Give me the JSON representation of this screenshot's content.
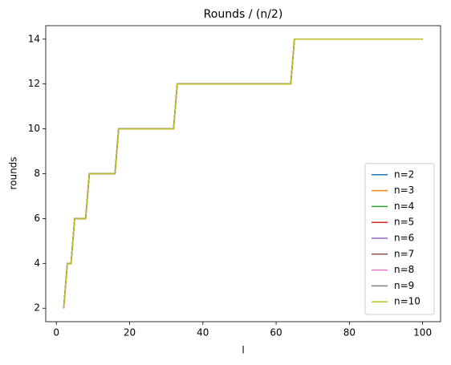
{
  "chart_data": {
    "type": "line",
    "title": "Rounds / (n/2)",
    "x_label": "l",
    "y_label": "rounds",
    "x": [
      2,
      3,
      4,
      5,
      6,
      7,
      8,
      9,
      10,
      11,
      12,
      13,
      14,
      15,
      16,
      17,
      18,
      19,
      20,
      21,
      22,
      23,
      24,
      25,
      26,
      27,
      28,
      29,
      30,
      31,
      32,
      33,
      34,
      35,
      36,
      37,
      38,
      39,
      40,
      41,
      42,
      43,
      44,
      45,
      46,
      47,
      48,
      49,
      50,
      51,
      52,
      53,
      54,
      55,
      56,
      57,
      58,
      59,
      60,
      61,
      62,
      63,
      64,
      65,
      66,
      67,
      68,
      69,
      70,
      71,
      72,
      73,
      74,
      75,
      76,
      77,
      78,
      79,
      80,
      81,
      82,
      83,
      84,
      85,
      86,
      87,
      88,
      89,
      90,
      91,
      92,
      93,
      94,
      95,
      96,
      97,
      98,
      99,
      100
    ],
    "series": [
      {
        "name": "n=2",
        "color": "#1f77b4",
        "values": [
          2,
          4,
          4,
          6,
          6,
          6,
          6,
          8,
          8,
          8,
          8,
          8,
          8,
          8,
          8,
          10,
          10,
          10,
          10,
          10,
          10,
          10,
          10,
          10,
          10,
          10,
          10,
          10,
          10,
          10,
          10,
          12,
          12,
          12,
          12,
          12,
          12,
          12,
          12,
          12,
          12,
          12,
          12,
          12,
          12,
          12,
          12,
          12,
          12,
          12,
          12,
          12,
          12,
          12,
          12,
          12,
          12,
          12,
          12,
          12,
          12,
          12,
          12,
          14,
          14,
          14,
          14,
          14,
          14,
          14,
          14,
          14,
          14,
          14,
          14,
          14,
          14,
          14,
          14,
          14,
          14,
          14,
          14,
          14,
          14,
          14,
          14,
          14,
          14,
          14,
          14,
          14,
          14,
          14,
          14,
          14,
          14,
          14,
          14
        ]
      },
      {
        "name": "n=3",
        "color": "#ff7f0e",
        "values": [
          2,
          4,
          4,
          6,
          6,
          6,
          6,
          8,
          8,
          8,
          8,
          8,
          8,
          8,
          8,
          10,
          10,
          10,
          10,
          10,
          10,
          10,
          10,
          10,
          10,
          10,
          10,
          10,
          10,
          10,
          10,
          12,
          12,
          12,
          12,
          12,
          12,
          12,
          12,
          12,
          12,
          12,
          12,
          12,
          12,
          12,
          12,
          12,
          12,
          12,
          12,
          12,
          12,
          12,
          12,
          12,
          12,
          12,
          12,
          12,
          12,
          12,
          12,
          14,
          14,
          14,
          14,
          14,
          14,
          14,
          14,
          14,
          14,
          14,
          14,
          14,
          14,
          14,
          14,
          14,
          14,
          14,
          14,
          14,
          14,
          14,
          14,
          14,
          14,
          14,
          14,
          14,
          14,
          14,
          14,
          14,
          14,
          14,
          14
        ]
      },
      {
        "name": "n=4",
        "color": "#2ca02c",
        "values": [
          2,
          4,
          4,
          6,
          6,
          6,
          6,
          8,
          8,
          8,
          8,
          8,
          8,
          8,
          8,
          10,
          10,
          10,
          10,
          10,
          10,
          10,
          10,
          10,
          10,
          10,
          10,
          10,
          10,
          10,
          10,
          12,
          12,
          12,
          12,
          12,
          12,
          12,
          12,
          12,
          12,
          12,
          12,
          12,
          12,
          12,
          12,
          12,
          12,
          12,
          12,
          12,
          12,
          12,
          12,
          12,
          12,
          12,
          12,
          12,
          12,
          12,
          12,
          14,
          14,
          14,
          14,
          14,
          14,
          14,
          14,
          14,
          14,
          14,
          14,
          14,
          14,
          14,
          14,
          14,
          14,
          14,
          14,
          14,
          14,
          14,
          14,
          14,
          14,
          14,
          14,
          14,
          14,
          14,
          14,
          14,
          14,
          14,
          14
        ]
      },
      {
        "name": "n=5",
        "color": "#d62728",
        "values": [
          2,
          4,
          4,
          6,
          6,
          6,
          6,
          8,
          8,
          8,
          8,
          8,
          8,
          8,
          8,
          10,
          10,
          10,
          10,
          10,
          10,
          10,
          10,
          10,
          10,
          10,
          10,
          10,
          10,
          10,
          10,
          12,
          12,
          12,
          12,
          12,
          12,
          12,
          12,
          12,
          12,
          12,
          12,
          12,
          12,
          12,
          12,
          12,
          12,
          12,
          12,
          12,
          12,
          12,
          12,
          12,
          12,
          12,
          12,
          12,
          12,
          12,
          12,
          14,
          14,
          14,
          14,
          14,
          14,
          14,
          14,
          14,
          14,
          14,
          14,
          14,
          14,
          14,
          14,
          14,
          14,
          14,
          14,
          14,
          14,
          14,
          14,
          14,
          14,
          14,
          14,
          14,
          14,
          14,
          14,
          14,
          14,
          14,
          14
        ]
      },
      {
        "name": "n=6",
        "color": "#9467bd",
        "values": [
          2,
          4,
          4,
          6,
          6,
          6,
          6,
          8,
          8,
          8,
          8,
          8,
          8,
          8,
          8,
          10,
          10,
          10,
          10,
          10,
          10,
          10,
          10,
          10,
          10,
          10,
          10,
          10,
          10,
          10,
          10,
          12,
          12,
          12,
          12,
          12,
          12,
          12,
          12,
          12,
          12,
          12,
          12,
          12,
          12,
          12,
          12,
          12,
          12,
          12,
          12,
          12,
          12,
          12,
          12,
          12,
          12,
          12,
          12,
          12,
          12,
          12,
          12,
          14,
          14,
          14,
          14,
          14,
          14,
          14,
          14,
          14,
          14,
          14,
          14,
          14,
          14,
          14,
          14,
          14,
          14,
          14,
          14,
          14,
          14,
          14,
          14,
          14,
          14,
          14,
          14,
          14,
          14,
          14,
          14,
          14,
          14,
          14,
          14
        ]
      },
      {
        "name": "n=7",
        "color": "#8c564b",
        "values": [
          2,
          4,
          4,
          6,
          6,
          6,
          6,
          8,
          8,
          8,
          8,
          8,
          8,
          8,
          8,
          10,
          10,
          10,
          10,
          10,
          10,
          10,
          10,
          10,
          10,
          10,
          10,
          10,
          10,
          10,
          10,
          12,
          12,
          12,
          12,
          12,
          12,
          12,
          12,
          12,
          12,
          12,
          12,
          12,
          12,
          12,
          12,
          12,
          12,
          12,
          12,
          12,
          12,
          12,
          12,
          12,
          12,
          12,
          12,
          12,
          12,
          12,
          12,
          14,
          14,
          14,
          14,
          14,
          14,
          14,
          14,
          14,
          14,
          14,
          14,
          14,
          14,
          14,
          14,
          14,
          14,
          14,
          14,
          14,
          14,
          14,
          14,
          14,
          14,
          14,
          14,
          14,
          14,
          14,
          14,
          14,
          14,
          14,
          14
        ]
      },
      {
        "name": "n=8",
        "color": "#e377c2",
        "values": [
          2,
          4,
          4,
          6,
          6,
          6,
          6,
          8,
          8,
          8,
          8,
          8,
          8,
          8,
          8,
          10,
          10,
          10,
          10,
          10,
          10,
          10,
          10,
          10,
          10,
          10,
          10,
          10,
          10,
          10,
          10,
          12,
          12,
          12,
          12,
          12,
          12,
          12,
          12,
          12,
          12,
          12,
          12,
          12,
          12,
          12,
          12,
          12,
          12,
          12,
          12,
          12,
          12,
          12,
          12,
          12,
          12,
          12,
          12,
          12,
          12,
          12,
          12,
          14,
          14,
          14,
          14,
          14,
          14,
          14,
          14,
          14,
          14,
          14,
          14,
          14,
          14,
          14,
          14,
          14,
          14,
          14,
          14,
          14,
          14,
          14,
          14,
          14,
          14,
          14,
          14,
          14,
          14,
          14,
          14,
          14,
          14,
          14,
          14
        ]
      },
      {
        "name": "n=9",
        "color": "#7f7f7f",
        "values": [
          2,
          4,
          4,
          6,
          6,
          6,
          6,
          8,
          8,
          8,
          8,
          8,
          8,
          8,
          8,
          10,
          10,
          10,
          10,
          10,
          10,
          10,
          10,
          10,
          10,
          10,
          10,
          10,
          10,
          10,
          10,
          12,
          12,
          12,
          12,
          12,
          12,
          12,
          12,
          12,
          12,
          12,
          12,
          12,
          12,
          12,
          12,
          12,
          12,
          12,
          12,
          12,
          12,
          12,
          12,
          12,
          12,
          12,
          12,
          12,
          12,
          12,
          12,
          14,
          14,
          14,
          14,
          14,
          14,
          14,
          14,
          14,
          14,
          14,
          14,
          14,
          14,
          14,
          14,
          14,
          14,
          14,
          14,
          14,
          14,
          14,
          14,
          14,
          14,
          14,
          14,
          14,
          14,
          14,
          14,
          14,
          14,
          14,
          14
        ]
      },
      {
        "name": "n=10",
        "color": "#bcbd22",
        "values": [
          2,
          4,
          4,
          6,
          6,
          6,
          6,
          8,
          8,
          8,
          8,
          8,
          8,
          8,
          8,
          10,
          10,
          10,
          10,
          10,
          10,
          10,
          10,
          10,
          10,
          10,
          10,
          10,
          10,
          10,
          10,
          12,
          12,
          12,
          12,
          12,
          12,
          12,
          12,
          12,
          12,
          12,
          12,
          12,
          12,
          12,
          12,
          12,
          12,
          12,
          12,
          12,
          12,
          12,
          12,
          12,
          12,
          12,
          12,
          12,
          12,
          12,
          12,
          14,
          14,
          14,
          14,
          14,
          14,
          14,
          14,
          14,
          14,
          14,
          14,
          14,
          14,
          14,
          14,
          14,
          14,
          14,
          14,
          14,
          14,
          14,
          14,
          14,
          14,
          14,
          14,
          14,
          14,
          14,
          14,
          14,
          14,
          14,
          14
        ]
      }
    ],
    "xlim": [
      -2.9,
      104.9
    ],
    "ylim": [
      1.4,
      14.6
    ],
    "xticks": [
      0,
      20,
      40,
      60,
      80,
      100
    ],
    "yticks": [
      2,
      4,
      6,
      8,
      10,
      12,
      14
    ],
    "legend": "lower right"
  }
}
